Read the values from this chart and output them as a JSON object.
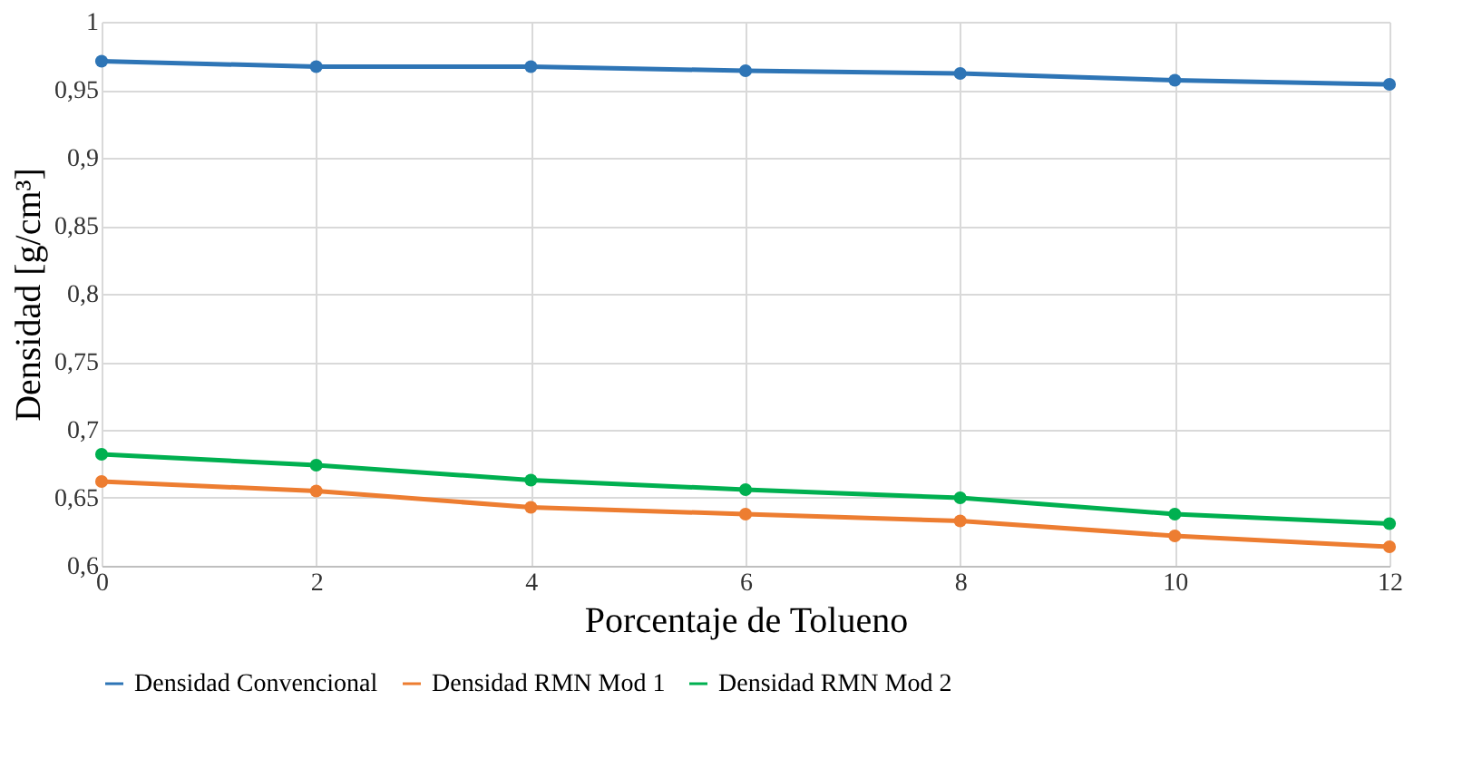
{
  "chart_data": {
    "type": "line",
    "xlabel": "Porcentaje de Tolueno",
    "ylabel": "Densidad [g/cm³]",
    "x": [
      0,
      2,
      4,
      6,
      8,
      10,
      12
    ],
    "xlim": [
      0,
      12
    ],
    "xticks": [
      0,
      2,
      4,
      6,
      8,
      10,
      12
    ],
    "ylim": [
      0.6,
      1
    ],
    "yticks": [
      {
        "value": 0.6,
        "label": "0,6"
      },
      {
        "value": 0.65,
        "label": "0,65"
      },
      {
        "value": 0.7,
        "label": "0,7"
      },
      {
        "value": 0.75,
        "label": "0,75"
      },
      {
        "value": 0.8,
        "label": "0,8"
      },
      {
        "value": 0.85,
        "label": "0,85"
      },
      {
        "value": 0.9,
        "label": "0,9"
      },
      {
        "value": 0.95,
        "label": "0,95"
      },
      {
        "value": 1,
        "label": "1"
      }
    ],
    "series": [
      {
        "name": "Densidad Convencional",
        "color": "#2e75b6",
        "values": [
          0.971,
          0.967,
          0.967,
          0.964,
          0.962,
          0.957,
          0.954
        ]
      },
      {
        "name": "Densidad RMN Mod 1",
        "color": "#ed7d31",
        "values": [
          0.662,
          0.655,
          0.643,
          0.638,
          0.633,
          0.622,
          0.614
        ]
      },
      {
        "name": "Densidad RMN Mod 2",
        "color": "#00b050",
        "values": [
          0.682,
          0.674,
          0.663,
          0.656,
          0.65,
          0.638,
          0.631
        ]
      }
    ],
    "grid": true,
    "legend": "bottom",
    "marker": "circle",
    "line_style": "solid"
  }
}
